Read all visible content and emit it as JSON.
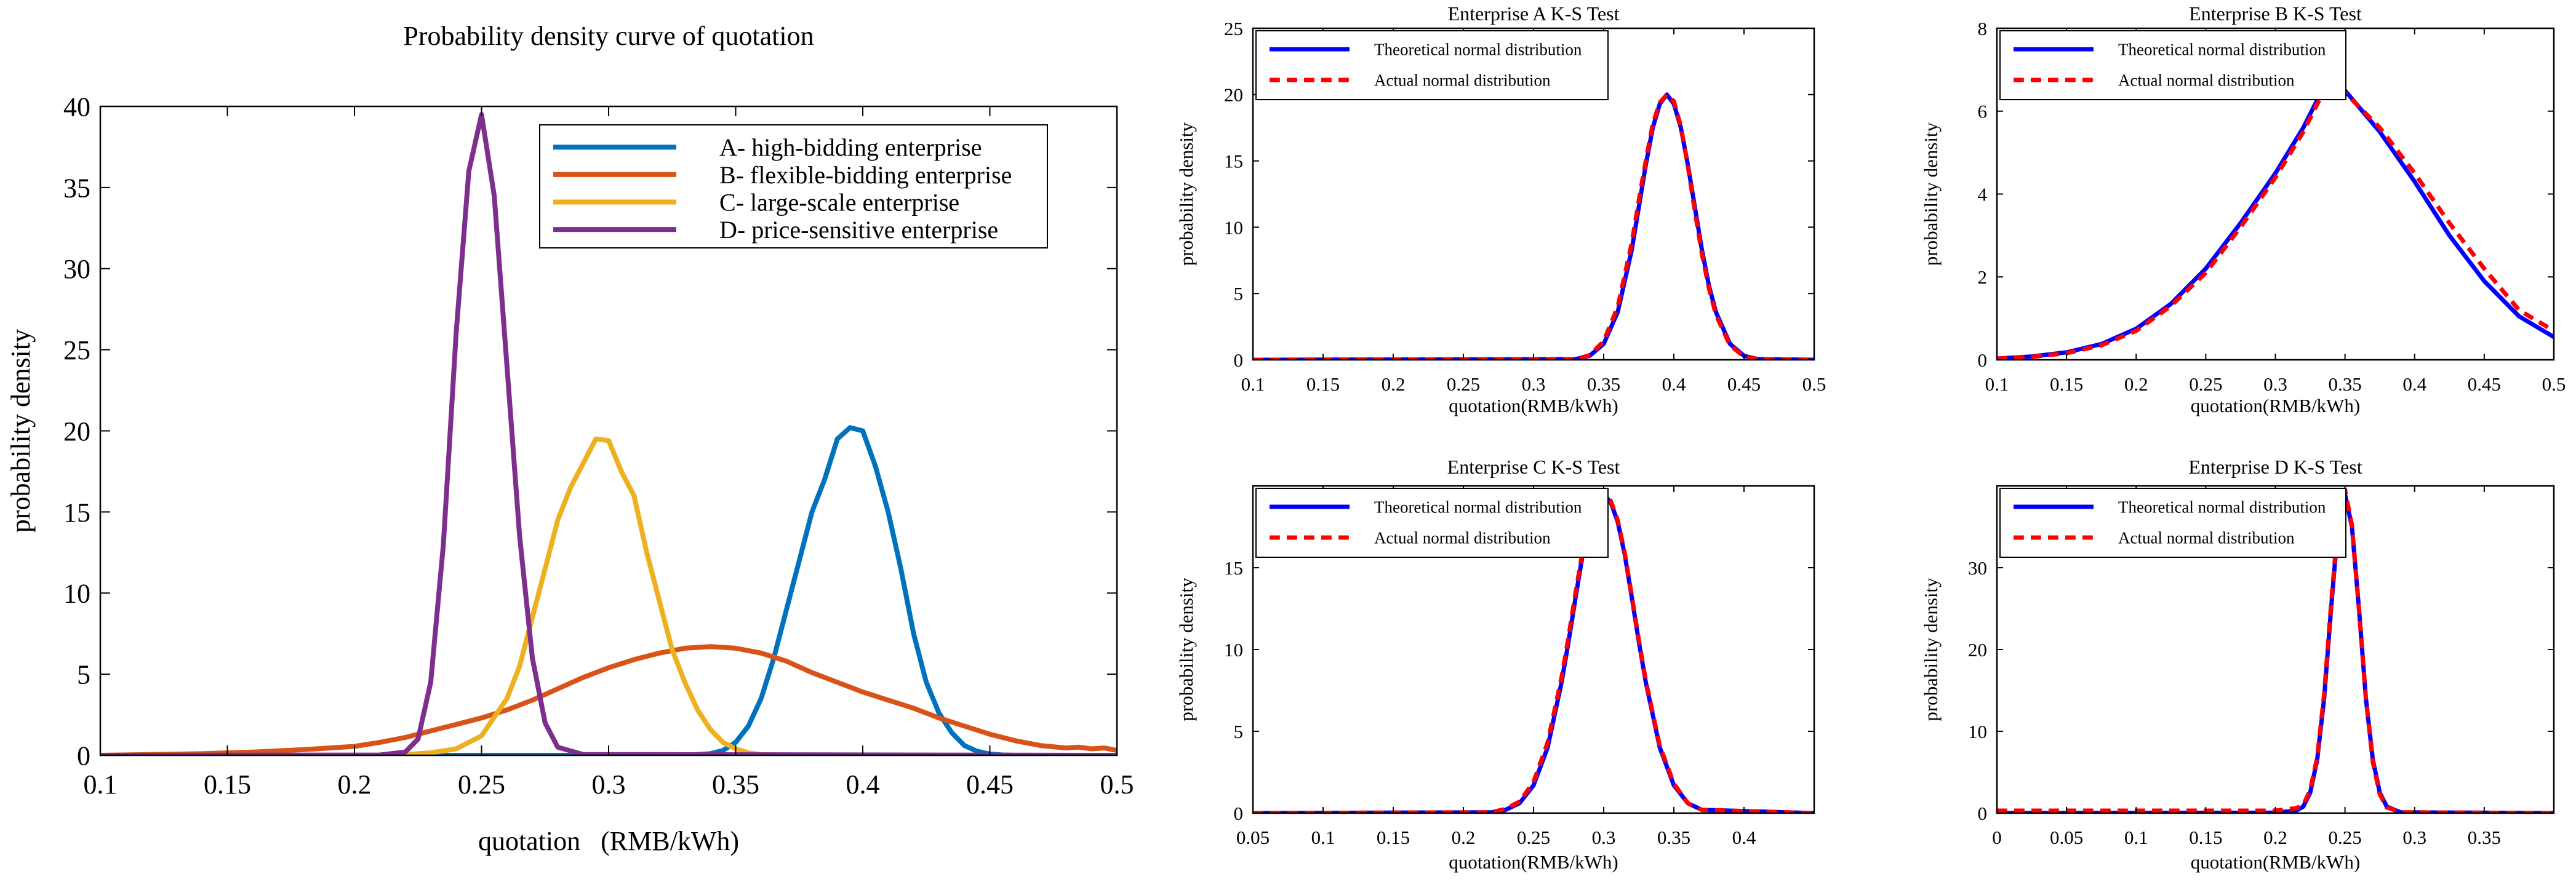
{
  "colors": {
    "A": "#0072BD",
    "B": "#D95319",
    "C": "#EDB120",
    "D": "#7E2F8E",
    "theoretical": "#0000FF",
    "actual": "#FF0000"
  },
  "chart_data": [
    {
      "id": "main",
      "type": "line",
      "title": "Probability density curve of quotation",
      "xlabel": "quotation   (RMB/kWh)",
      "ylabel": "probability density",
      "xlim": [
        0.1,
        0.5
      ],
      "ylim": [
        0,
        40
      ],
      "xticks": [
        0.1,
        0.15,
        0.2,
        0.25,
        0.3,
        0.35,
        0.4,
        0.45,
        0.5
      ],
      "xtick_labels": [
        "0.1",
        "0.15",
        "0.2",
        "0.25",
        "0.3",
        "0.35",
        "0.4",
        "0.45",
        "0.5"
      ],
      "yticks": [
        0,
        5,
        10,
        15,
        20,
        25,
        30,
        35,
        40
      ],
      "ytick_labels": [
        "0",
        "5",
        "10",
        "15",
        "20",
        "25",
        "30",
        "35",
        "40"
      ],
      "legend_position": "top-right",
      "series": [
        {
          "key": "A",
          "name": "A- high-bidding enterprise",
          "x": [
            0.1,
            0.33,
            0.34,
            0.345,
            0.35,
            0.355,
            0.36,
            0.365,
            0.37,
            0.375,
            0.38,
            0.385,
            0.39,
            0.395,
            0.4,
            0.405,
            0.41,
            0.415,
            0.42,
            0.425,
            0.43,
            0.435,
            0.44,
            0.445,
            0.45,
            0.455,
            0.46,
            0.47,
            0.5
          ],
          "y": [
            0,
            0,
            0.1,
            0.3,
            0.8,
            1.8,
            3.5,
            6.0,
            9.0,
            12.0,
            15.0,
            17.0,
            19.5,
            20.2,
            20.0,
            17.8,
            15.0,
            11.5,
            7.5,
            4.5,
            2.6,
            1.4,
            0.6,
            0.25,
            0.08,
            0.02,
            0,
            0,
            0
          ]
        },
        {
          "key": "B",
          "name": "B- flexible-bidding enterprise",
          "x": [
            0.1,
            0.12,
            0.14,
            0.16,
            0.18,
            0.2,
            0.21,
            0.22,
            0.23,
            0.24,
            0.25,
            0.26,
            0.27,
            0.28,
            0.29,
            0.3,
            0.31,
            0.32,
            0.33,
            0.34,
            0.35,
            0.36,
            0.37,
            0.38,
            0.39,
            0.4,
            0.41,
            0.42,
            0.43,
            0.44,
            0.45,
            0.46,
            0.47,
            0.48,
            0.485,
            0.49,
            0.495,
            0.5
          ],
          "y": [
            0,
            0.05,
            0.1,
            0.2,
            0.35,
            0.55,
            0.8,
            1.1,
            1.5,
            1.9,
            2.3,
            2.8,
            3.4,
            4.1,
            4.8,
            5.4,
            5.9,
            6.3,
            6.6,
            6.7,
            6.6,
            6.3,
            5.8,
            5.1,
            4.5,
            3.9,
            3.4,
            2.9,
            2.3,
            1.8,
            1.3,
            0.9,
            0.6,
            0.45,
            0.5,
            0.4,
            0.45,
            0.3
          ]
        },
        {
          "key": "C",
          "name": "C- large-scale enterprise",
          "x": [
            0.1,
            0.21,
            0.22,
            0.23,
            0.24,
            0.25,
            0.26,
            0.265,
            0.27,
            0.275,
            0.28,
            0.285,
            0.29,
            0.295,
            0.3,
            0.305,
            0.31,
            0.315,
            0.32,
            0.325,
            0.33,
            0.335,
            0.34,
            0.345,
            0.35,
            0.355,
            0.36,
            0.37,
            0.5
          ],
          "y": [
            0,
            0,
            0.05,
            0.15,
            0.4,
            1.2,
            3.5,
            5.5,
            8.5,
            11.5,
            14.5,
            16.5,
            18.0,
            19.5,
            19.4,
            17.5,
            16.0,
            12.5,
            9.5,
            6.5,
            4.5,
            2.8,
            1.6,
            0.8,
            0.4,
            0.15,
            0.05,
            0,
            0
          ]
        },
        {
          "key": "D",
          "name": "D- price-sensitive enterprise",
          "x": [
            0.1,
            0.21,
            0.22,
            0.225,
            0.23,
            0.235,
            0.24,
            0.245,
            0.25,
            0.255,
            0.26,
            0.265,
            0.27,
            0.275,
            0.28,
            0.29,
            0.5
          ],
          "y": [
            0,
            0.02,
            0.2,
            1.0,
            4.5,
            13.0,
            26.0,
            36.0,
            39.5,
            34.5,
            24.0,
            13.5,
            6.0,
            2.0,
            0.5,
            0.05,
            0
          ]
        }
      ]
    },
    {
      "id": "ksA",
      "type": "line",
      "title": "Enterprise A K-S Test",
      "xlabel": "quotation(RMB/kWh)",
      "ylabel": "probability density",
      "xlim": [
        0.1,
        0.5
      ],
      "ylim": [
        0,
        25
      ],
      "xticks": [
        0.1,
        0.15,
        0.2,
        0.25,
        0.3,
        0.35,
        0.4,
        0.45,
        0.5
      ],
      "xtick_labels": [
        "0.1",
        "0.15",
        "0.2",
        "0.25",
        "0.3",
        "0.35",
        "0.4",
        "0.45",
        "0.5"
      ],
      "yticks": [
        0,
        5,
        10,
        15,
        20,
        25
      ],
      "ytick_labels": [
        "0",
        "5",
        "10",
        "15",
        "20",
        "25"
      ],
      "legend_position": "top-left",
      "series": [
        {
          "name": "Theoretical normal distribution",
          "style": "solid",
          "x": [
            0.1,
            0.33,
            0.34,
            0.35,
            0.36,
            0.37,
            0.375,
            0.38,
            0.385,
            0.39,
            0.395,
            0.4,
            0.405,
            0.41,
            0.415,
            0.42,
            0.425,
            0.43,
            0.44,
            0.45,
            0.46,
            0.5
          ],
          "y": [
            0,
            0.05,
            0.3,
            1.2,
            3.6,
            8.3,
            11.5,
            14.7,
            17.5,
            19.3,
            20.0,
            19.3,
            17.5,
            14.7,
            11.5,
            8.3,
            5.6,
            3.6,
            1.2,
            0.3,
            0.05,
            0
          ]
        },
        {
          "name": "Actual normal distribution",
          "style": "dashed",
          "x": [
            0.1,
            0.33,
            0.34,
            0.35,
            0.36,
            0.37,
            0.375,
            0.38,
            0.385,
            0.39,
            0.395,
            0.4,
            0.405,
            0.41,
            0.415,
            0.42,
            0.425,
            0.43,
            0.44,
            0.45,
            0.46,
            0.5
          ],
          "y": [
            0,
            0.05,
            0.35,
            1.4,
            4.0,
            8.8,
            12.0,
            15.0,
            17.8,
            19.4,
            20.0,
            19.5,
            17.6,
            14.6,
            11.2,
            8.0,
            5.4,
            3.4,
            1.1,
            0.25,
            0.05,
            0
          ]
        }
      ]
    },
    {
      "id": "ksB",
      "type": "line",
      "title": "Enterprise B K-S Test",
      "xlabel": "quotation(RMB/kWh)",
      "ylabel": "probability density",
      "xlim": [
        0.1,
        0.5
      ],
      "ylim": [
        0,
        8
      ],
      "xticks": [
        0.1,
        0.15,
        0.2,
        0.25,
        0.3,
        0.35,
        0.4,
        0.45,
        0.5
      ],
      "xtick_labels": [
        "0.1",
        "0.15",
        "0.2",
        "0.25",
        "0.3",
        "0.35",
        "0.4",
        "0.45",
        "0.5"
      ],
      "yticks": [
        0,
        2,
        4,
        6,
        8
      ],
      "ytick_labels": [
        "0",
        "2",
        "4",
        "6",
        "8"
      ],
      "legend_position": "top-left",
      "series": [
        {
          "name": "Theoretical normal distribution",
          "style": "solid",
          "x": [
            0.1,
            0.125,
            0.15,
            0.175,
            0.2,
            0.225,
            0.25,
            0.275,
            0.3,
            0.32,
            0.335,
            0.35,
            0.375,
            0.4,
            0.425,
            0.45,
            0.475,
            0.5
          ],
          "y": [
            0.03,
            0.08,
            0.18,
            0.38,
            0.75,
            1.35,
            2.2,
            3.3,
            4.5,
            5.6,
            6.6,
            6.5,
            5.5,
            4.3,
            3.0,
            1.9,
            1.05,
            0.55
          ]
        },
        {
          "name": "Actual normal distribution",
          "style": "dashed",
          "x": [
            0.1,
            0.125,
            0.15,
            0.175,
            0.2,
            0.225,
            0.25,
            0.275,
            0.3,
            0.32,
            0.335,
            0.35,
            0.375,
            0.4,
            0.425,
            0.45,
            0.475,
            0.5
          ],
          "y": [
            0.03,
            0.07,
            0.16,
            0.35,
            0.7,
            1.3,
            2.1,
            3.2,
            4.4,
            5.5,
            6.5,
            6.45,
            5.6,
            4.5,
            3.3,
            2.2,
            1.2,
            0.7
          ]
        }
      ]
    },
    {
      "id": "ksC",
      "type": "line",
      "title": "Enterprise C K-S Test",
      "xlabel": "quotation(RMB/kWh)",
      "ylabel": "probability density",
      "xlim": [
        0.05,
        0.45
      ],
      "ylim": [
        0,
        20
      ],
      "xticks": [
        0.05,
        0.1,
        0.15,
        0.2,
        0.25,
        0.3,
        0.35,
        0.4
      ],
      "xtick_labels": [
        "0.05",
        "0.1",
        "0.15",
        "0.2",
        "0.25",
        "0.3",
        "0.35",
        "0.4"
      ],
      "yticks": [
        0,
        5,
        10,
        15
      ],
      "ytick_labels": [
        "0",
        "5",
        "10",
        "15"
      ],
      "legend_position": "top-left",
      "series": [
        {
          "name": "Theoretical normal distribution",
          "style": "solid",
          "x": [
            0.05,
            0.22,
            0.23,
            0.24,
            0.25,
            0.26,
            0.27,
            0.275,
            0.28,
            0.285,
            0.29,
            0.295,
            0.3,
            0.305,
            0.31,
            0.315,
            0.32,
            0.325,
            0.33,
            0.34,
            0.35,
            0.36,
            0.37,
            0.45
          ],
          "y": [
            0,
            0.05,
            0.2,
            0.6,
            1.7,
            4.0,
            8.0,
            10.5,
            13.2,
            15.8,
            17.8,
            19.0,
            19.5,
            19.0,
            17.8,
            15.8,
            13.2,
            10.5,
            8.0,
            4.0,
            1.7,
            0.6,
            0.2,
            0
          ]
        },
        {
          "name": "Actual normal distribution",
          "style": "dashed",
          "x": [
            0.05,
            0.22,
            0.23,
            0.24,
            0.25,
            0.26,
            0.27,
            0.275,
            0.28,
            0.285,
            0.29,
            0.295,
            0.3,
            0.305,
            0.31,
            0.315,
            0.32,
            0.325,
            0.33,
            0.34,
            0.35,
            0.36,
            0.37,
            0.45
          ],
          "y": [
            0,
            0.05,
            0.25,
            0.7,
            1.9,
            4.3,
            8.3,
            10.8,
            13.5,
            16.0,
            18.0,
            19.2,
            19.6,
            19.1,
            17.9,
            15.9,
            13.3,
            10.6,
            8.1,
            4.1,
            1.8,
            0.6,
            0.2,
            0
          ]
        }
      ]
    },
    {
      "id": "ksD",
      "type": "line",
      "title": "Enterprise D K-S Test",
      "xlabel": "quotation(RMB/kWh)",
      "ylabel": "probability density",
      "xlim": [
        0,
        0.4
      ],
      "ylim": [
        0,
        40
      ],
      "xticks": [
        0,
        0.05,
        0.1,
        0.15,
        0.2,
        0.25,
        0.3,
        0.35
      ],
      "xtick_labels": [
        "0",
        "0.05",
        "0.1",
        "0.15",
        "0.2",
        "0.25",
        "0.3",
        "0.35"
      ],
      "yticks": [
        0,
        10,
        20,
        30
      ],
      "ytick_labels": [
        "0",
        "10",
        "20",
        "30"
      ],
      "legend_position": "top-left",
      "series": [
        {
          "name": "Theoretical normal distribution",
          "style": "solid",
          "x": [
            0,
            0.2,
            0.215,
            0.22,
            0.225,
            0.23,
            0.235,
            0.24,
            0.245,
            0.25,
            0.255,
            0.26,
            0.265,
            0.27,
            0.275,
            0.28,
            0.29,
            0.4
          ],
          "y": [
            0,
            0.05,
            0.3,
            0.8,
            2.5,
            6.5,
            14.0,
            25.0,
            35.0,
            39.0,
            35.0,
            25.0,
            14.0,
            6.5,
            2.5,
            0.8,
            0.1,
            0
          ]
        },
        {
          "name": "Actual normal distribution",
          "style": "dashed",
          "x": [
            0,
            0.2,
            0.215,
            0.22,
            0.225,
            0.23,
            0.235,
            0.24,
            0.245,
            0.25,
            0.255,
            0.26,
            0.265,
            0.27,
            0.275,
            0.28,
            0.29,
            0.4
          ],
          "y": [
            0.3,
            0.3,
            0.6,
            1.0,
            2.8,
            6.8,
            14.5,
            25.5,
            35.5,
            39.5,
            35.2,
            25.0,
            14.0,
            6.2,
            2.3,
            0.7,
            0.1,
            0
          ]
        }
      ]
    }
  ]
}
